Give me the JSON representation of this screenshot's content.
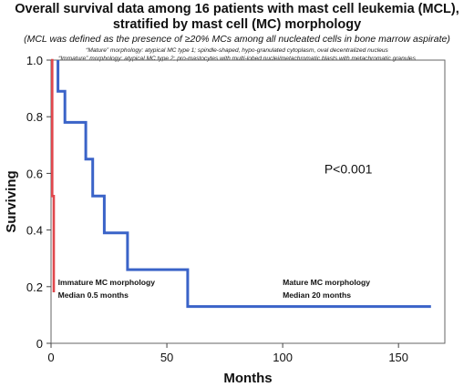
{
  "chart_data": {
    "type": "line",
    "title_line1": "Overall survival data among 16 patients with mast cell leukemia (MCL),",
    "title_line2": "stratified by mast cell (MC) morphology",
    "subtitle": "(MCL was defined as the presence of ≥20% MCs among all nucleated cells in bone marrow aspirate)",
    "definitions": [
      "“Mature” morphology: atypical MC type 1; spindle-shaped, hypo-granulated cytoplasm, oval decentralized nucleus",
      "“Immature” morphology: atypical MC type 2; pro-mastocytes with multi-lobed nuclei/metachromatic blasts with metachromatic granules"
    ],
    "xlabel": "Months",
    "ylabel": "Surviving",
    "xlim": [
      0,
      170
    ],
    "ylim": [
      0,
      1.0
    ],
    "x_ticks": [
      0,
      50,
      100,
      150
    ],
    "y_ticks": [
      0,
      0.2,
      0.4,
      0.6,
      0.8,
      1.0
    ],
    "x_tick_labels": [
      "0",
      "50",
      "100",
      "150"
    ],
    "y_tick_labels": [
      "0",
      "0.2",
      "0.4",
      "0.6",
      "0.8",
      "1.0"
    ],
    "grid": false,
    "series": [
      {
        "name": "Mature MC morphology",
        "color": "#3A63C8",
        "step": true,
        "points": [
          [
            3,
            1.0
          ],
          [
            3,
            0.89
          ],
          [
            6,
            0.89
          ],
          [
            6,
            0.78
          ],
          [
            15,
            0.78
          ],
          [
            15,
            0.65
          ],
          [
            18,
            0.65
          ],
          [
            18,
            0.52
          ],
          [
            23,
            0.52
          ],
          [
            23,
            0.39
          ],
          [
            33,
            0.39
          ],
          [
            33,
            0.26
          ],
          [
            59,
            0.26
          ],
          [
            59,
            0.13
          ],
          [
            164,
            0.13
          ]
        ]
      },
      {
        "name": "Immature MC morphology",
        "color": "#E0474C",
        "step": true,
        "points": [
          [
            0,
            1.0
          ],
          [
            0.5,
            1.0
          ],
          [
            0.5,
            0.52
          ],
          [
            1.2,
            0.52
          ],
          [
            1.2,
            0.18
          ]
        ]
      }
    ],
    "annotations": [
      {
        "line1": "Immature MC morphology",
        "line2": "Median 0.5 months",
        "x": 3,
        "y": 0.205
      },
      {
        "line1": "Mature MC morphology",
        "line2": "Median 20 months",
        "x": 100,
        "y": 0.205
      },
      {
        "text": "P<0.001",
        "x": 118,
        "y": 0.6
      }
    ]
  }
}
